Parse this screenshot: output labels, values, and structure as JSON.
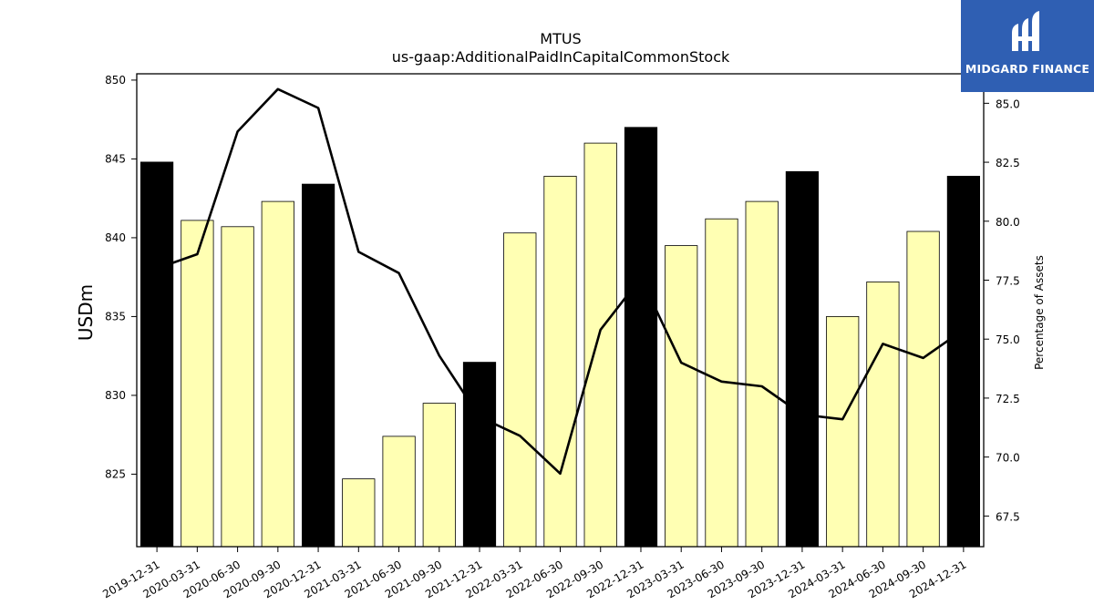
{
  "chart_data": {
    "type": "bar",
    "title": "MTUS",
    "subtitle": "us-gaap:AdditionalPaidInCapitalCommonStock",
    "ylabel": "USDm",
    "y2label": "Percentage of Assets",
    "categories": [
      "2019-12-31",
      "2020-03-31",
      "2020-06-30",
      "2020-09-30",
      "2020-12-31",
      "2021-03-31",
      "2021-06-30",
      "2021-09-30",
      "2021-12-31",
      "2022-03-31",
      "2022-06-30",
      "2022-09-30",
      "2022-12-31",
      "2023-03-31",
      "2023-06-30",
      "2023-09-30",
      "2023-12-31",
      "2024-03-31",
      "2024-06-30",
      "2024-09-30",
      "2024-12-31"
    ],
    "ylim": [
      820.4,
      850.4
    ],
    "y2lim": [
      66.2,
      86.25
    ],
    "yticks": [
      825,
      830,
      835,
      840,
      845,
      850
    ],
    "y2ticks": [
      "67.5",
      "70.0",
      "72.5",
      "75.0",
      "77.5",
      "80.0",
      "82.5",
      "85.0"
    ],
    "series": [
      {
        "axis": "left",
        "kind": "bar",
        "values": [
          844.8,
          841.1,
          840.7,
          842.3,
          843.4,
          824.7,
          827.4,
          829.5,
          832.1,
          840.3,
          843.9,
          846.0,
          847.0,
          839.5,
          841.2,
          842.3,
          844.2,
          835.0,
          837.2,
          840.4,
          843.9
        ],
        "annual": [
          true,
          false,
          false,
          false,
          true,
          false,
          false,
          false,
          true,
          false,
          false,
          false,
          true,
          false,
          false,
          false,
          true,
          false,
          false,
          false,
          true
        ]
      },
      {
        "axis": "right",
        "kind": "line",
        "values": [
          78.0,
          78.6,
          83.8,
          85.6,
          84.8,
          78.7,
          77.8,
          74.3,
          71.7,
          70.9,
          69.3,
          75.4,
          77.6,
          74.0,
          73.2,
          73.0,
          71.8,
          71.6,
          74.8,
          74.2,
          75.4
        ]
      }
    ],
    "colors": {
      "annual_bar": "#000000",
      "quarter_bar": "#ffffb3",
      "line": "#000000",
      "logo_bg": "#2f5fb3"
    }
  },
  "logo": {
    "text": "MIDGARD FINANCE",
    "icon": "midgard-logo-icon"
  }
}
